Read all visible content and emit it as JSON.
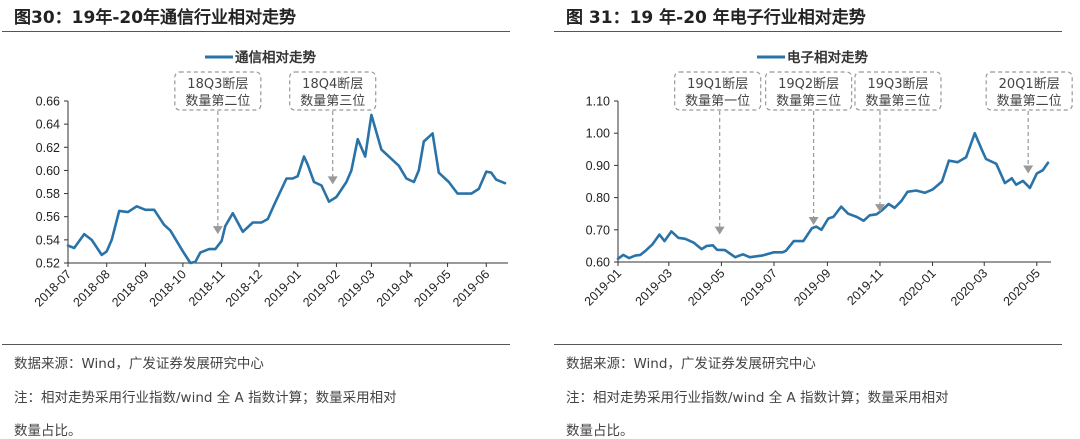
{
  "colors": {
    "line": "#2a73a8",
    "annotation": "#999999",
    "axis": "#333333"
  },
  "footer": {
    "source": "数据来源：Wind，广发证券发展研究中心",
    "note_line1": "注：相对走势采用行业指数/wind 全 A 指数计算；数量采用相对",
    "note_line2": "数量占比。"
  },
  "chart_data": [
    {
      "type": "line",
      "title": "图30：19年-20年通信行业相对走势",
      "xlabel": "",
      "ylabel": "",
      "xlim": [
        "2018-07-01",
        "2019-06-16"
      ],
      "ylim": [
        0.52,
        0.66
      ],
      "yticks": [
        "0.52",
        "0.54",
        "0.56",
        "0.58",
        "0.60",
        "0.62",
        "0.64",
        "0.66"
      ],
      "xticks": [
        "2018-07",
        "2018-08",
        "2018-09",
        "2018-10",
        "2018-11",
        "2018-12",
        "2019-01",
        "2019-02",
        "2019-03",
        "2019-04",
        "2019-05",
        "2019-06"
      ],
      "legend": "top-center",
      "grid": false,
      "series": [
        {
          "name": "通信相对走势",
          "x": [
            "2018-07-01",
            "2018-07-06",
            "2018-07-14",
            "2018-07-20",
            "2018-07-28",
            "2018-08-01",
            "2018-08-05",
            "2018-08-11",
            "2018-08-18",
            "2018-08-25",
            "2018-09-01",
            "2018-09-08",
            "2018-09-16",
            "2018-09-21",
            "2018-10-01",
            "2018-10-07",
            "2018-10-11",
            "2018-10-15",
            "2018-10-22",
            "2018-10-27",
            "2018-11-01",
            "2018-11-04",
            "2018-11-10",
            "2018-11-18",
            "2018-11-26",
            "2018-12-03",
            "2018-12-08",
            "2018-12-13",
            "2018-12-23",
            "2018-12-28",
            "2019-01-01",
            "2019-01-06",
            "2019-01-09",
            "2019-01-14",
            "2019-01-20",
            "2019-01-26",
            "2019-02-01",
            "2019-02-09",
            "2019-02-13",
            "2019-02-18",
            "2019-02-24",
            "2019-03-01",
            "2019-03-09",
            "2019-03-16",
            "2019-03-23",
            "2019-03-29",
            "2019-04-04",
            "2019-04-08",
            "2019-04-12",
            "2019-04-19",
            "2019-04-24",
            "2019-05-02",
            "2019-05-09",
            "2019-05-20",
            "2019-05-26",
            "2019-06-01",
            "2019-06-05",
            "2019-06-09",
            "2019-06-16"
          ],
          "y": [
            0.535,
            0.533,
            0.545,
            0.54,
            0.527,
            0.53,
            0.54,
            0.565,
            0.564,
            0.569,
            0.566,
            0.566,
            0.553,
            0.548,
            0.53,
            0.52,
            0.521,
            0.529,
            0.532,
            0.532,
            0.539,
            0.552,
            0.563,
            0.547,
            0.555,
            0.555,
            0.558,
            0.57,
            0.593,
            0.593,
            0.595,
            0.612,
            0.605,
            0.59,
            0.587,
            0.573,
            0.577,
            0.59,
            0.6,
            0.627,
            0.612,
            0.648,
            0.618,
            0.611,
            0.604,
            0.593,
            0.59,
            0.6,
            0.625,
            0.632,
            0.598,
            0.59,
            0.58,
            0.58,
            0.584,
            0.599,
            0.598,
            0.592,
            0.589
          ]
        }
      ],
      "annotations": [
        {
          "line1": "18Q3断层",
          "line2": "数量第二位",
          "x": "2018-10-29",
          "y": 0.545
        },
        {
          "line1": "18Q4断层",
          "line2": "数量第三位",
          "x": "2019-01-29",
          "y": 0.588
        }
      ]
    },
    {
      "type": "line",
      "title": "图 31：19 年-20 年电子行业相对走势",
      "xlabel": "",
      "ylabel": "",
      "xlim": [
        "2019-01-01",
        "2020-05-14"
      ],
      "ylim": [
        0.6,
        1.1
      ],
      "yticks": [
        "0.60",
        "0.70",
        "0.80",
        "0.90",
        "1.00",
        "1.10"
      ],
      "xticks": [
        "2019-01",
        "2019-03",
        "2019-05",
        "2019-07",
        "2019-09",
        "2019-11",
        "2020-01",
        "2020-03",
        "2020-05"
      ],
      "legend": "top-center",
      "grid": false,
      "series": [
        {
          "name": "电子相对走势",
          "x": [
            "2019-01-01",
            "2019-01-07",
            "2019-01-14",
            "2019-01-21",
            "2019-01-27",
            "2019-02-02",
            "2019-02-10",
            "2019-02-18",
            "2019-02-24",
            "2019-03-04",
            "2019-03-12",
            "2019-03-20",
            "2019-03-30",
            "2019-04-08",
            "2019-04-14",
            "2019-04-21",
            "2019-04-26",
            "2019-05-05",
            "2019-05-17",
            "2019-05-26",
            "2019-06-03",
            "2019-06-17",
            "2019-07-01",
            "2019-07-11",
            "2019-07-15",
            "2019-07-24",
            "2019-08-04",
            "2019-08-14",
            "2019-08-19",
            "2019-08-25",
            "2019-09-02",
            "2019-09-08",
            "2019-09-17",
            "2019-09-25",
            "2019-10-05",
            "2019-10-13",
            "2019-10-20",
            "2019-10-28",
            "2019-11-03",
            "2019-11-11",
            "2019-11-18",
            "2019-11-26",
            "2019-12-03",
            "2019-12-13",
            "2019-12-23",
            "2020-01-01",
            "2020-01-12",
            "2020-01-20",
            "2020-01-30",
            "2020-02-09",
            "2020-02-19",
            "2020-02-27",
            "2020-03-03",
            "2020-03-15",
            "2020-03-25",
            "2020-04-02",
            "2020-04-07",
            "2020-04-15",
            "2020-04-23",
            "2020-05-01",
            "2020-05-08",
            "2020-05-14"
          ],
          "y": [
            0.61,
            0.622,
            0.612,
            0.62,
            0.622,
            0.635,
            0.655,
            0.685,
            0.665,
            0.695,
            0.675,
            0.672,
            0.66,
            0.64,
            0.65,
            0.652,
            0.638,
            0.637,
            0.615,
            0.624,
            0.615,
            0.62,
            0.63,
            0.63,
            0.635,
            0.665,
            0.665,
            0.705,
            0.71,
            0.7,
            0.735,
            0.74,
            0.772,
            0.75,
            0.74,
            0.728,
            0.745,
            0.748,
            0.76,
            0.78,
            0.768,
            0.79,
            0.818,
            0.822,
            0.815,
            0.825,
            0.85,
            0.915,
            0.91,
            0.925,
            1.0,
            0.95,
            0.92,
            0.905,
            0.845,
            0.86,
            0.84,
            0.852,
            0.83,
            0.875,
            0.885,
            0.908
          ]
        }
      ],
      "annotations": [
        {
          "line1": "19Q1断层",
          "line2": "数量第一位",
          "x": "2019-04-29",
          "y": 0.685
        },
        {
          "line1": "19Q2断层",
          "line2": "数量第三位",
          "x": "2019-08-16",
          "y": 0.715
        },
        {
          "line1": "19Q3断层",
          "line2": "数量第三位",
          "x": "2019-11-01",
          "y": 0.755
        },
        {
          "line1": "20Q1断层",
          "line2": "数量第二位",
          "x": "2020-04-21",
          "y": 0.875
        }
      ]
    }
  ]
}
